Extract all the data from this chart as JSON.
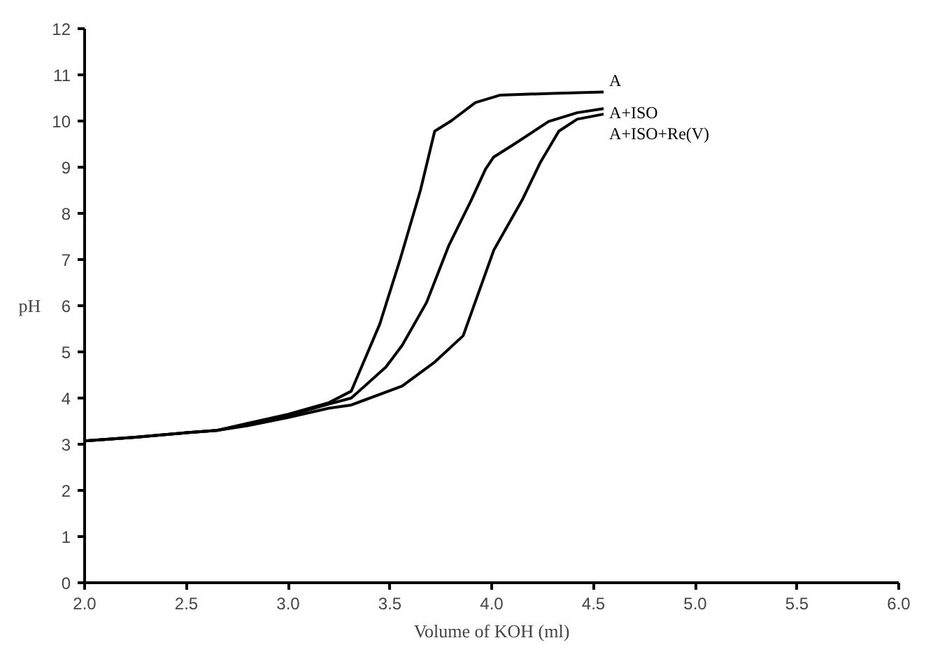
{
  "chart_data": {
    "type": "line",
    "xlabel": "Volume of KOH (ml)",
    "ylabel": "pH",
    "xlim": [
      2,
      6
    ],
    "ylim": [
      0,
      12
    ],
    "xticks": [
      {
        "value": 2,
        "label": "2.0"
      },
      {
        "value": 2.5,
        "label": "2.5"
      },
      {
        "value": 3,
        "label": "3.0"
      },
      {
        "value": 3.5,
        "label": "3.5"
      },
      {
        "value": 4,
        "label": "4.0"
      },
      {
        "value": 4.5,
        "label": "4.5"
      },
      {
        "value": 5,
        "label": "5.0"
      },
      {
        "value": 5.5,
        "label": "5.5"
      },
      {
        "value": 6,
        "label": "6.0"
      }
    ],
    "yticks": [
      0,
      1,
      2,
      3,
      4,
      5,
      6,
      7,
      8,
      9,
      10,
      11,
      12
    ],
    "grid": false,
    "legend": false,
    "marker": "none",
    "line_style": "solid",
    "series": [
      {
        "name": "A",
        "color": "#000000",
        "x": [
          2.0,
          2.25,
          2.5,
          2.65,
          2.8,
          3.0,
          3.2,
          3.31,
          3.45,
          3.55,
          3.65,
          3.72,
          3.8,
          3.92,
          4.04,
          4.3,
          4.55
        ],
        "values": [
          3.07,
          3.15,
          3.25,
          3.3,
          3.45,
          3.65,
          3.9,
          4.15,
          5.6,
          7.0,
          8.5,
          9.78,
          10.0,
          10.4,
          10.56,
          10.6,
          10.63
        ]
      },
      {
        "name": "A+ISO",
        "color": "#000000",
        "x": [
          2.0,
          2.25,
          2.5,
          2.65,
          2.8,
          3.0,
          3.2,
          3.31,
          3.48,
          3.56,
          3.68,
          3.79,
          3.9,
          3.97,
          4.01,
          4.1,
          4.28,
          4.42,
          4.55
        ],
        "values": [
          3.07,
          3.15,
          3.25,
          3.3,
          3.43,
          3.62,
          3.87,
          4.0,
          4.67,
          5.14,
          6.07,
          7.31,
          8.29,
          8.96,
          9.22,
          9.47,
          9.99,
          10.18,
          10.27
        ]
      },
      {
        "name": "A+ISO+Re(V)",
        "color": "#000000",
        "x": [
          2.0,
          2.25,
          2.5,
          2.65,
          2.8,
          3.0,
          3.2,
          3.31,
          3.56,
          3.72,
          3.86,
          4.01,
          4.15,
          4.24,
          4.33,
          4.42,
          4.55
        ],
        "values": [
          3.07,
          3.15,
          3.25,
          3.3,
          3.4,
          3.58,
          3.78,
          3.85,
          4.26,
          4.78,
          5.35,
          7.2,
          8.29,
          9.11,
          9.78,
          10.04,
          10.15
        ]
      }
    ]
  }
}
